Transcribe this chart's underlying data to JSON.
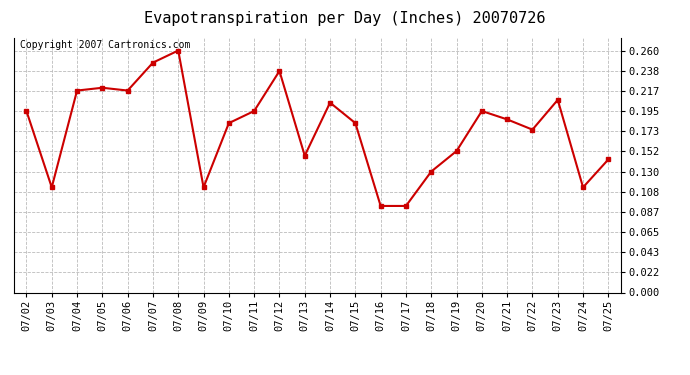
{
  "title": "Evapotranspiration per Day (Inches) 20070726",
  "copyright_text": "Copyright 2007 Cartronics.com",
  "dates": [
    "07/02",
    "07/03",
    "07/04",
    "07/05",
    "07/06",
    "07/07",
    "07/08",
    "07/09",
    "07/10",
    "07/11",
    "07/12",
    "07/13",
    "07/14",
    "07/15",
    "07/16",
    "07/17",
    "07/18",
    "07/19",
    "07/20",
    "07/21",
    "07/22",
    "07/23",
    "07/24",
    "07/25"
  ],
  "values": [
    0.195,
    0.113,
    0.217,
    0.22,
    0.217,
    0.247,
    0.26,
    0.113,
    0.182,
    0.195,
    0.238,
    0.147,
    0.204,
    0.182,
    0.093,
    0.093,
    0.13,
    0.152,
    0.195,
    0.186,
    0.175,
    0.207,
    0.113,
    0.143
  ],
  "line_color": "#cc0000",
  "marker": "s",
  "marker_size": 3,
  "background_color": "#ffffff",
  "plot_bg_color": "#ffffff",
  "grid_color": "#bbbbbb",
  "title_fontsize": 11,
  "yticks": [
    0.0,
    0.022,
    0.043,
    0.065,
    0.087,
    0.108,
    0.13,
    0.152,
    0.173,
    0.195,
    0.217,
    0.238,
    0.26
  ],
  "ylim": [
    0.0,
    0.274
  ],
  "copyright_fontsize": 7,
  "tick_fontsize": 7.5
}
